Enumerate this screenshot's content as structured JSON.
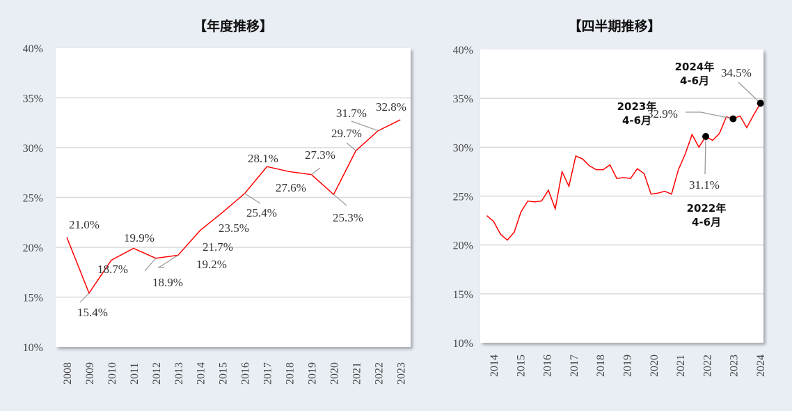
{
  "chart_data": [
    {
      "type": "line",
      "title": "【年度推移】",
      "xlabel": "",
      "ylabel": "",
      "ylim": [
        10,
        40
      ],
      "yticks": [
        "10%",
        "15%",
        "20%",
        "25%",
        "30%",
        "35%",
        "40%"
      ],
      "grid": true,
      "categories": [
        "2008",
        "2009",
        "2010",
        "2011",
        "2012",
        "2013",
        "2014",
        "2015",
        "2016",
        "2017",
        "2018",
        "2019",
        "2020",
        "2021",
        "2022",
        "2023"
      ],
      "values": [
        21.0,
        15.4,
        18.7,
        19.9,
        18.9,
        19.2,
        21.7,
        23.5,
        25.4,
        28.1,
        27.6,
        27.3,
        25.3,
        29.7,
        31.7,
        32.8
      ],
      "data_labels": [
        "21.0%",
        "15.4%",
        "18.7%",
        "19.9%",
        "18.9%",
        "19.2%",
        "21.7%",
        "23.5%",
        "25.4%",
        "28.1%",
        "27.6%",
        "27.3%",
        "25.3%",
        "29.7%",
        "31.7%",
        "32.8%"
      ],
      "line_color": "#ff0000"
    },
    {
      "type": "line",
      "title": "【四半期推移】",
      "xlabel": "",
      "ylabel": "",
      "ylim": [
        10,
        40
      ],
      "yticks": [
        "10%",
        "15%",
        "20%",
        "25%",
        "30%",
        "35%",
        "40%"
      ],
      "grid": true,
      "x_tick_labels": [
        "2014",
        "2015",
        "2016",
        "2017",
        "2018",
        "2019",
        "2020",
        "2021",
        "2022",
        "2023",
        "2024"
      ],
      "values": [
        23.0,
        22.4,
        21.1,
        20.5,
        21.3,
        23.4,
        24.5,
        24.4,
        24.5,
        25.6,
        23.7,
        27.5,
        26.0,
        29.1,
        28.8,
        28.1,
        27.7,
        27.7,
        28.2,
        26.8,
        26.9,
        26.8,
        27.8,
        27.3,
        25.2,
        25.3,
        25.5,
        25.2,
        27.7,
        29.3,
        31.3,
        30.0,
        31.1,
        30.7,
        31.4,
        33.1,
        32.9,
        33.2,
        32.0,
        33.3,
        34.5
      ],
      "line_color": "#ff0000",
      "annotations": [
        {
          "index": 32,
          "value_label": "31.1%",
          "line1": "2022年",
          "line2": "4-6月"
        },
        {
          "index": 36,
          "value_label": "32.9%",
          "line1": "2023年",
          "line2": "4-6月"
        },
        {
          "index": 40,
          "value_label": "34.5%",
          "line1": "2024年",
          "line2": "4-6月"
        }
      ]
    }
  ]
}
